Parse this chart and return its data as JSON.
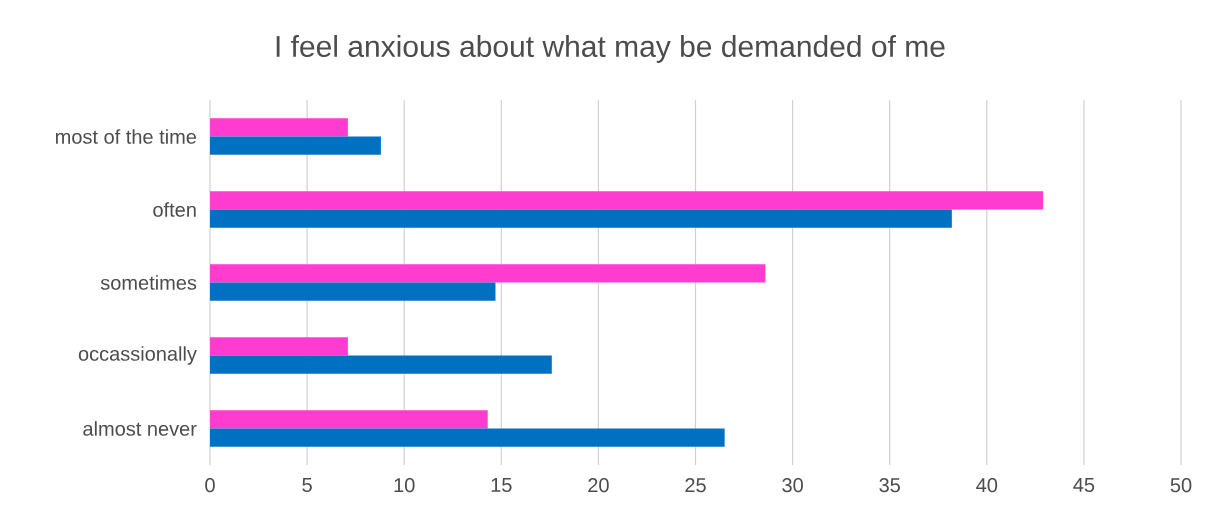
{
  "chart_data": {
    "type": "bar",
    "orientation": "horizontal",
    "title": "I feel anxious about what may be demanded of me",
    "categories": [
      "most of the time",
      "often",
      "sometimes",
      "occassionally",
      "almost never"
    ],
    "series": [
      {
        "color": "#ff3ccf",
        "values": [
          7.1,
          42.9,
          28.6,
          7.1,
          14.3
        ]
      },
      {
        "color": "#0070c0",
        "values": [
          8.8,
          38.2,
          14.7,
          17.6,
          26.5
        ]
      }
    ],
    "xlim": [
      0,
      50
    ],
    "xticks": [
      0,
      5,
      10,
      15,
      20,
      25,
      30,
      35,
      40,
      45,
      50
    ],
    "grid": "x"
  }
}
